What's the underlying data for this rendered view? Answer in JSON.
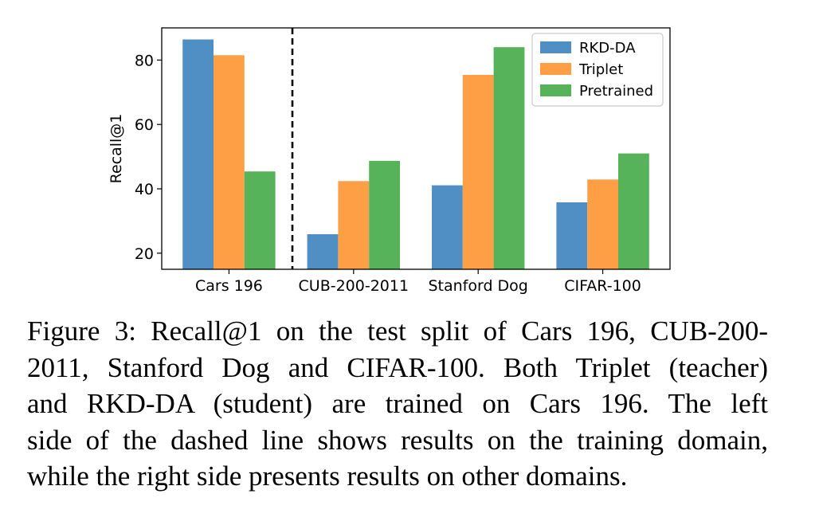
{
  "chart_data": {
    "type": "bar",
    "categories": [
      "Cars 196",
      "CUB-200-2011",
      "Stanford Dog",
      "CIFAR-100"
    ],
    "series": [
      {
        "name": "RKD-DA",
        "values": [
          86.4,
          25.9,
          41.1,
          35.8
        ],
        "color": "#4f8fc4"
      },
      {
        "name": "Triplet",
        "values": [
          81.5,
          42.4,
          75.4,
          42.9
        ],
        "color": "#ff9f45"
      },
      {
        "name": "Pretrained",
        "values": [
          45.4,
          48.7,
          84.0,
          51.0
        ],
        "color": "#56b35a"
      }
    ],
    "ylabel": "Recall@1",
    "xlabel": "",
    "title": "",
    "ylim": [
      15,
      90
    ],
    "yticks": [
      20,
      40,
      60,
      80
    ],
    "grid": false,
    "legend_position": "top-right",
    "divider": {
      "style": "dashed",
      "after_category": "Cars 196"
    }
  },
  "caption": {
    "lines": [
      "Figure 3: Recall@1 on the test split of Cars 196, CUB-200-",
      "2011, Stanford Dog and CIFAR-100. Both Triplet (teacher)",
      "and RKD-DA (student) are trained on Cars 196.  The left",
      "side of the dashed line shows results on the training domain,",
      "while the right side presents results on other domains."
    ]
  }
}
